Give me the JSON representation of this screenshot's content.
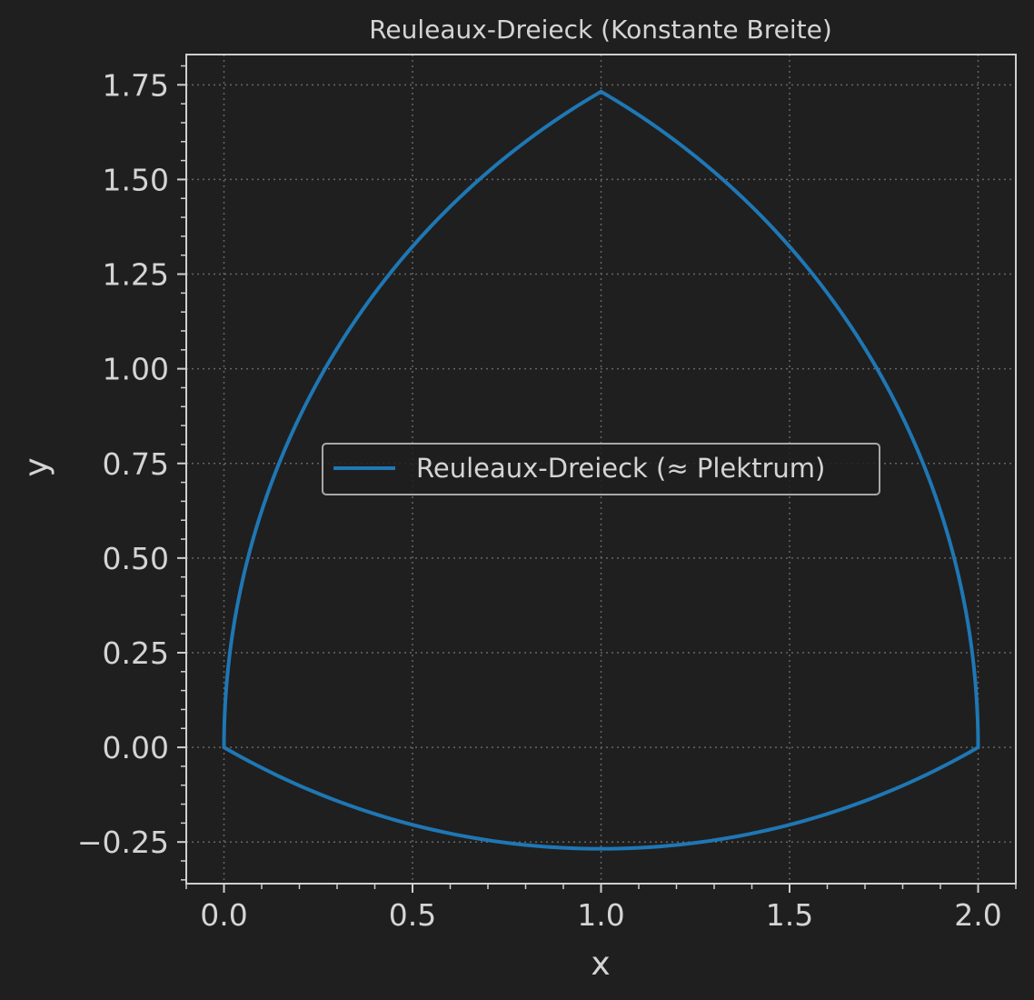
{
  "chart_data": {
    "type": "line",
    "title": "Reuleaux-Dreieck (Konstante Breite)",
    "xlabel": "x",
    "ylabel": "y",
    "xlim": [
      -0.1,
      2.1
    ],
    "ylim": [
      -0.36,
      1.83
    ],
    "xticks": [
      0.0,
      0.5,
      1.0,
      1.5,
      2.0
    ],
    "xtick_labels": [
      "0.0",
      "0.5",
      "1.0",
      "1.5",
      "2.0"
    ],
    "yticks": [
      -0.25,
      0.0,
      0.25,
      0.5,
      0.75,
      1.0,
      1.25,
      1.5,
      1.75
    ],
    "ytick_labels": [
      "−0.25",
      "0.00",
      "0.25",
      "0.50",
      "0.75",
      "1.00",
      "1.25",
      "1.50",
      "1.75"
    ],
    "x_minor_step": 0.1,
    "y_minor_step": 0.05,
    "grid": true,
    "legend_position": "center",
    "series": [
      {
        "name": "Reuleaux-Dreieck (≈ Plektrum)",
        "color": "#1f77b4",
        "shape": "reuleaux-triangle",
        "vertices": [
          [
            0.0,
            0.0
          ],
          [
            2.0,
            0.0
          ],
          [
            1.0,
            1.7320508
          ]
        ],
        "width": 2.0
      }
    ]
  },
  "colors": {
    "background": "#1f1f1f",
    "axes": "#cfcfcf",
    "grid": "#666666",
    "text": "#d4d4d4",
    "series": "#1f77b4"
  }
}
